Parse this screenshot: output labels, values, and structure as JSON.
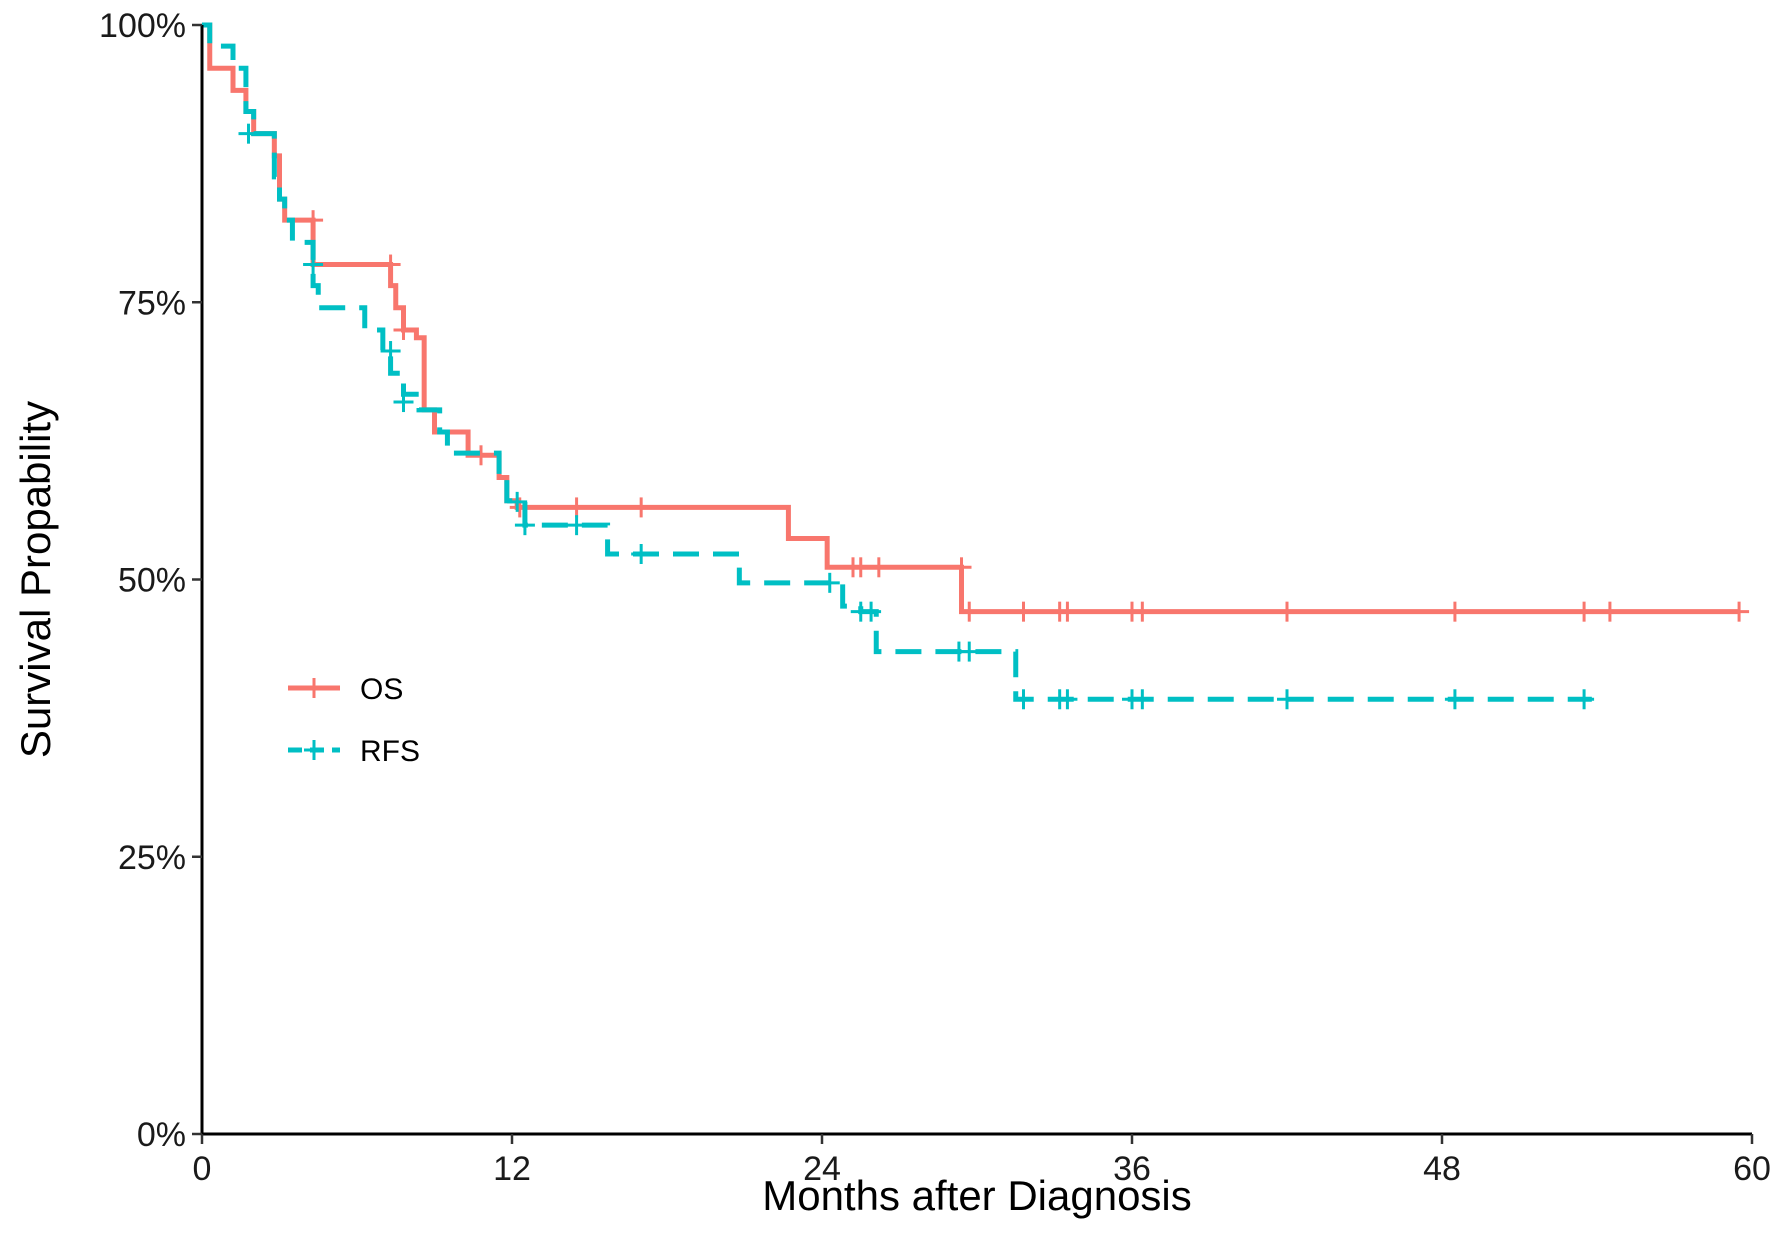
{
  "chart_data": {
    "type": "line",
    "title": "",
    "xlabel": "Months after Diagnosis",
    "ylabel": "Survival Propability",
    "xlim": [
      0,
      60
    ],
    "ylim": [
      0,
      100
    ],
    "x_ticks": [
      0,
      12,
      24,
      36,
      48,
      60
    ],
    "x_tick_labels": [
      "0",
      "12",
      "24",
      "36",
      "48",
      "60"
    ],
    "y_ticks": [
      0,
      25,
      50,
      75,
      100
    ],
    "y_tick_labels": [
      "0%",
      "25%",
      "50%",
      "75%",
      "100%"
    ],
    "grid": false,
    "legend_position": "left-middle",
    "series": [
      {
        "name": "OS",
        "color": "#F8766D",
        "style": "solid",
        "steps": [
          [
            0,
            100
          ],
          [
            0.3,
            96.1
          ],
          [
            1.2,
            94.1
          ],
          [
            1.7,
            92.2
          ],
          [
            2,
            90.2
          ],
          [
            2.8,
            88.2
          ],
          [
            3,
            84.3
          ],
          [
            3.2,
            82.4
          ],
          [
            4.3,
            78.4
          ],
          [
            7.3,
            76.5
          ],
          [
            7.5,
            74.5
          ],
          [
            7.8,
            72.5
          ],
          [
            8.3,
            71.8
          ],
          [
            8.6,
            65.3
          ],
          [
            9,
            63.3
          ],
          [
            10.3,
            61.2
          ],
          [
            11.5,
            59.2
          ],
          [
            11.8,
            57.1
          ],
          [
            12.2,
            56.5
          ],
          [
            22.7,
            53.7
          ],
          [
            24.2,
            51.1
          ],
          [
            29.4,
            47.1
          ],
          [
            59.5,
            47.1
          ]
        ],
        "censors": [
          [
            4.3,
            82.4
          ],
          [
            7.3,
            78.4
          ],
          [
            7.8,
            72.5
          ],
          [
            10.8,
            61.2
          ],
          [
            12.3,
            56.5
          ],
          [
            14.5,
            56.5
          ],
          [
            17,
            56.5
          ],
          [
            25.2,
            51.1
          ],
          [
            25.5,
            51.1
          ],
          [
            26.2,
            51.1
          ],
          [
            29.4,
            51.1
          ],
          [
            29.7,
            47.1
          ],
          [
            31.8,
            47.1
          ],
          [
            33.2,
            47.1
          ],
          [
            33.5,
            47.1
          ],
          [
            36,
            47.1
          ],
          [
            36.4,
            47.1
          ],
          [
            42,
            47.1
          ],
          [
            48.5,
            47.1
          ],
          [
            53.5,
            47.1
          ],
          [
            54.5,
            47.1
          ],
          [
            59.5,
            47.1
          ]
        ]
      },
      {
        "name": "RFS",
        "color": "#00BFC4",
        "style": "dashed",
        "steps": [
          [
            0,
            100
          ],
          [
            0.3,
            98.1
          ],
          [
            1.2,
            96.1
          ],
          [
            1.7,
            92.2
          ],
          [
            2,
            90.2
          ],
          [
            2.8,
            86.3
          ],
          [
            3,
            84.3
          ],
          [
            3.2,
            82.4
          ],
          [
            3.5,
            80.4
          ],
          [
            4.3,
            76.5
          ],
          [
            4.5,
            74.5
          ],
          [
            6.3,
            72.5
          ],
          [
            7,
            70.6
          ],
          [
            7.3,
            68.6
          ],
          [
            7.8,
            66.7
          ],
          [
            8.4,
            65.3
          ],
          [
            9.2,
            63.3
          ],
          [
            9.5,
            61.4
          ],
          [
            11.5,
            59.2
          ],
          [
            11.8,
            57.1
          ],
          [
            12.5,
            54.9
          ],
          [
            15.7,
            52.3
          ],
          [
            20.8,
            49.7
          ],
          [
            24.8,
            47.6
          ],
          [
            25.5,
            47.1
          ],
          [
            26.1,
            43.5
          ],
          [
            31.5,
            39.2
          ],
          [
            53.8,
            39.2
          ]
        ],
        "censors": [
          [
            1.8,
            90.2
          ],
          [
            4.3,
            78.4
          ],
          [
            7.3,
            70.6
          ],
          [
            7.8,
            66.0
          ],
          [
            12.2,
            57.0
          ],
          [
            12.5,
            54.9
          ],
          [
            14.5,
            54.9
          ],
          [
            17,
            52.3
          ],
          [
            24.3,
            49.7
          ],
          [
            25.5,
            47.1
          ],
          [
            25.9,
            47.1
          ],
          [
            29.3,
            43.5
          ],
          [
            29.7,
            43.5
          ],
          [
            31.8,
            39.2
          ],
          [
            33.2,
            39.2
          ],
          [
            33.5,
            39.2
          ],
          [
            36,
            39.2
          ],
          [
            36.4,
            39.2
          ],
          [
            42,
            39.2
          ],
          [
            48.5,
            39.2
          ],
          [
            53.5,
            39.2
          ]
        ]
      }
    ],
    "legend": [
      {
        "name": "OS",
        "color": "#F8766D",
        "style": "solid"
      },
      {
        "name": "RFS",
        "color": "#00BFC4",
        "style": "dashed"
      }
    ]
  }
}
